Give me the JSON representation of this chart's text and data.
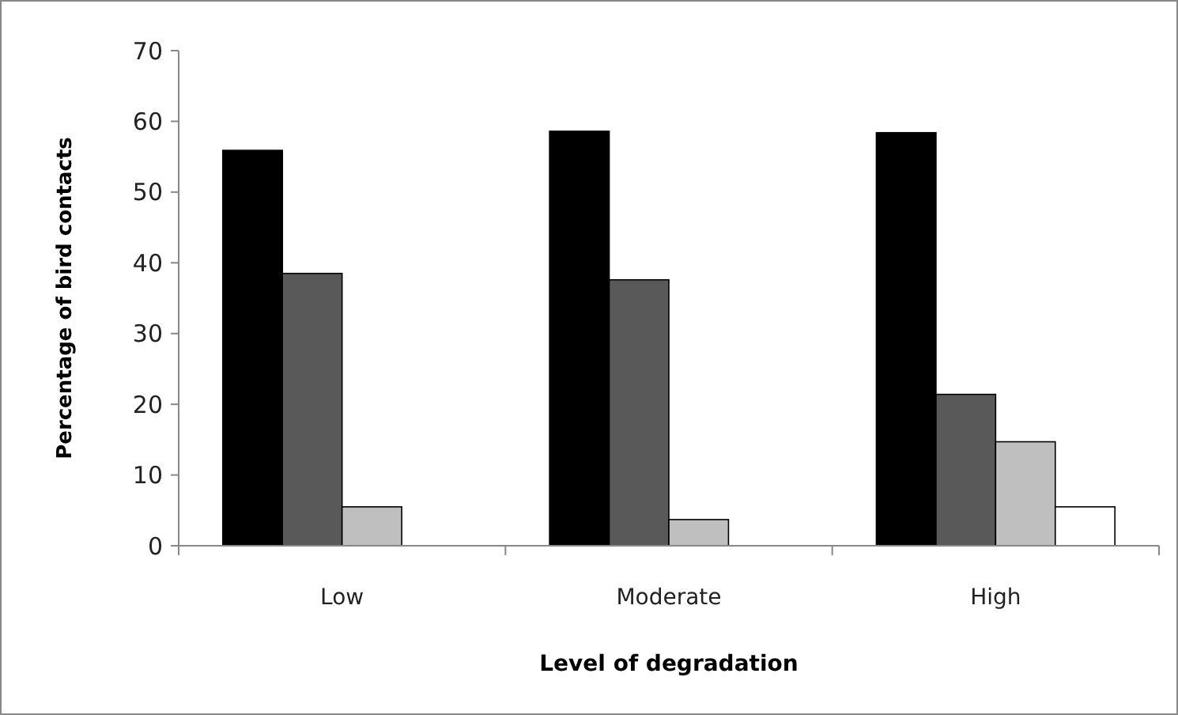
{
  "chart_data": {
    "type": "bar",
    "xlabel": "Level of degradation",
    "ylabel": "Percentage of bird contacts",
    "categories": [
      "Low",
      "Moderate",
      "High"
    ],
    "series": [
      {
        "color": "#000000",
        "values": [
          55.9,
          58.6,
          58.4
        ]
      },
      {
        "color": "#595959",
        "values": [
          38.5,
          37.6,
          21.4
        ]
      },
      {
        "color": "#bfbfbf",
        "values": [
          5.5,
          3.7,
          14.7
        ]
      },
      {
        "color": "#ffffff",
        "values": [
          0,
          0,
          5.5
        ]
      }
    ],
    "ylim": [
      0,
      70
    ],
    "yticks": [
      0,
      10,
      20,
      30,
      40,
      50,
      60,
      70
    ],
    "grid": false
  }
}
